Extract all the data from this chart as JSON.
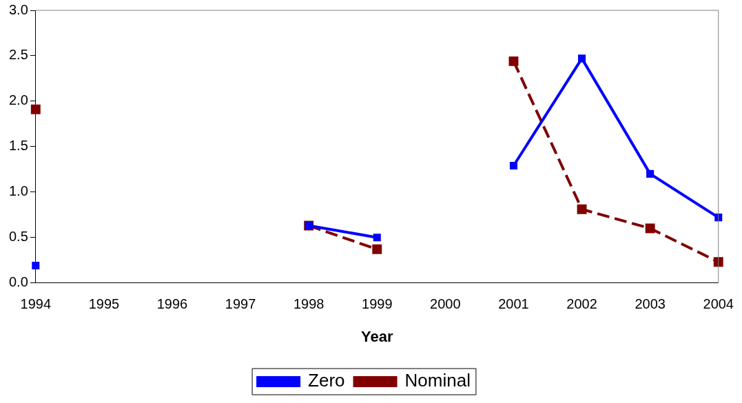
{
  "chart_data": {
    "type": "line",
    "xlabel": "Year",
    "categories": [
      "1994",
      "1995",
      "1996",
      "1997",
      "1998",
      "1999",
      "2000",
      "2001",
      "2002",
      "2003",
      "2004"
    ],
    "series": [
      {
        "name": "Zero",
        "color": "#0000ff",
        "line_style": "solid",
        "values": [
          0.19,
          null,
          null,
          null,
          0.63,
          0.5,
          null,
          1.29,
          2.47,
          1.2,
          0.72
        ]
      },
      {
        "name": "Nominal",
        "color": "#800000",
        "line_style": "dashed",
        "values": [
          1.91,
          null,
          null,
          null,
          0.63,
          0.37,
          null,
          2.44,
          0.81,
          0.6,
          0.23
        ]
      }
    ],
    "ylim": [
      0,
      3
    ],
    "yticks": [
      {
        "value": 0,
        "label": "0.0"
      },
      {
        "value": 0.5,
        "label": "0.5"
      },
      {
        "value": 1,
        "label": "1.0"
      },
      {
        "value": 1.5,
        "label": "1.5"
      },
      {
        "value": 2,
        "label": "2.0"
      },
      {
        "value": 2.5,
        "label": "2.5"
      },
      {
        "value": 3,
        "label": "3.0"
      }
    ],
    "grid": false,
    "legend": "bottom",
    "marker": "square"
  }
}
